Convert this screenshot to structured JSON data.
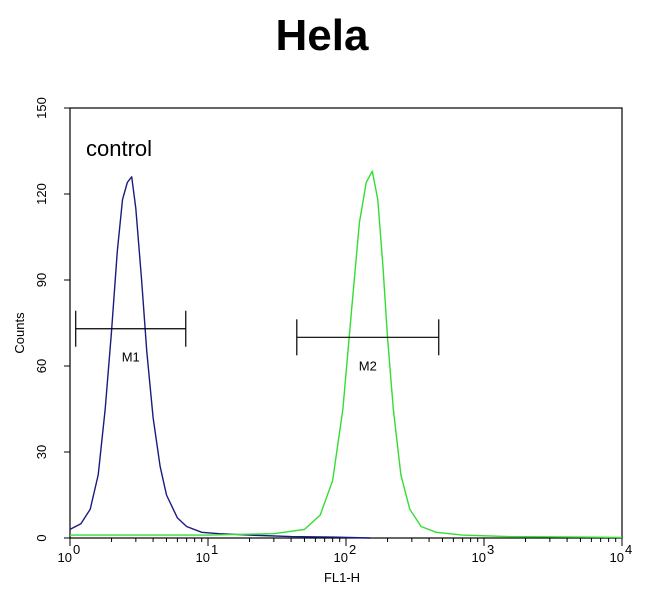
{
  "chart_data": {
    "type": "line",
    "title": "Hela",
    "xlabel": "FL1-H",
    "ylabel": "Counts",
    "xscale": "log",
    "xlim": [
      1,
      10000
    ],
    "ylim": [
      0,
      150
    ],
    "x_tick_labels": [
      {
        "value": 1,
        "base": "10",
        "exp": "0"
      },
      {
        "value": 10,
        "base": "10",
        "exp": "1"
      },
      {
        "value": 100,
        "base": "10",
        "exp": "2"
      },
      {
        "value": 1000,
        "base": "10",
        "exp": "3"
      },
      {
        "value": 10000,
        "base": "10",
        "exp": "4"
      }
    ],
    "y_ticks": [
      0,
      30,
      60,
      90,
      120,
      150
    ],
    "grid": false,
    "annotation": "control",
    "series": [
      {
        "color": "#1a1a80",
        "x": [
          1.0,
          1.2,
          1.4,
          1.6,
          1.8,
          2.0,
          2.2,
          2.4,
          2.6,
          2.8,
          3.0,
          3.3,
          3.6,
          4.0,
          4.5,
          5.0,
          6.0,
          7.0,
          9.0,
          12,
          20,
          40,
          80,
          150
        ],
        "y": [
          3,
          5,
          10,
          22,
          45,
          72,
          100,
          118,
          124,
          126,
          115,
          90,
          65,
          42,
          25,
          15,
          7,
          4,
          2,
          1.5,
          1,
          0.5,
          0.3,
          0
        ]
      },
      {
        "color": "#33dd33",
        "x": [
          1,
          10,
          30,
          50,
          65,
          80,
          95,
          110,
          125,
          140,
          155,
          170,
          185,
          200,
          220,
          250,
          290,
          350,
          450,
          700,
          1500,
          5000,
          10000
        ],
        "y": [
          1,
          1,
          1.5,
          3,
          8,
          20,
          45,
          80,
          110,
          124,
          128,
          118,
          95,
          70,
          45,
          22,
          10,
          4,
          2,
          1,
          0.5,
          0.3,
          0.2
        ]
      }
    ],
    "markers": [
      {
        "label": "M1",
        "x_start": 1.1,
        "x_end": 6.9,
        "y": 73
      },
      {
        "label": "M2",
        "x_start": 44,
        "x_end": 470,
        "y": 70
      }
    ]
  }
}
